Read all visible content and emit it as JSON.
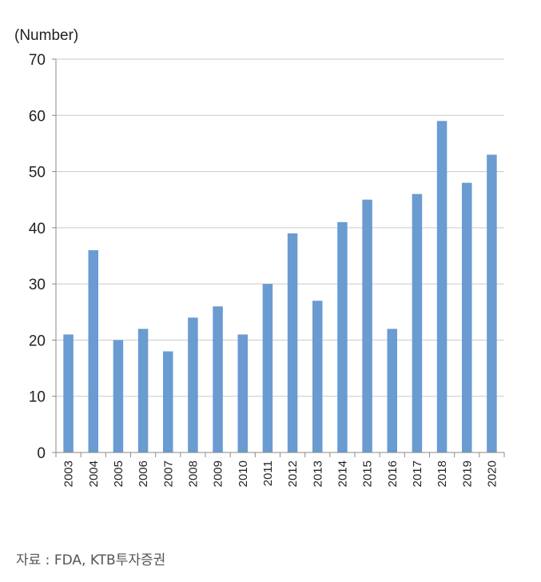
{
  "chart_data": {
    "type": "bar",
    "y_unit_label": "(Number)",
    "categories": [
      "2003",
      "2004",
      "2005",
      "2006",
      "2007",
      "2008",
      "2009",
      "2010",
      "2011",
      "2012",
      "2013",
      "2014",
      "2015",
      "2016",
      "2017",
      "2018",
      "2019",
      "2020"
    ],
    "series": [
      {
        "values": [
          21,
          36,
          20,
          22,
          18,
          24,
          26,
          21,
          30,
          39,
          27,
          41,
          45,
          22,
          46,
          59,
          48,
          53
        ]
      }
    ],
    "ylim": [
      0,
      70
    ],
    "yticks": [
      0,
      10,
      20,
      30,
      40,
      50,
      60,
      70
    ],
    "grid": "horizontal",
    "bar_color": "#6a9bd1"
  },
  "source_note": "자료 : FDA, KTB투자증권"
}
